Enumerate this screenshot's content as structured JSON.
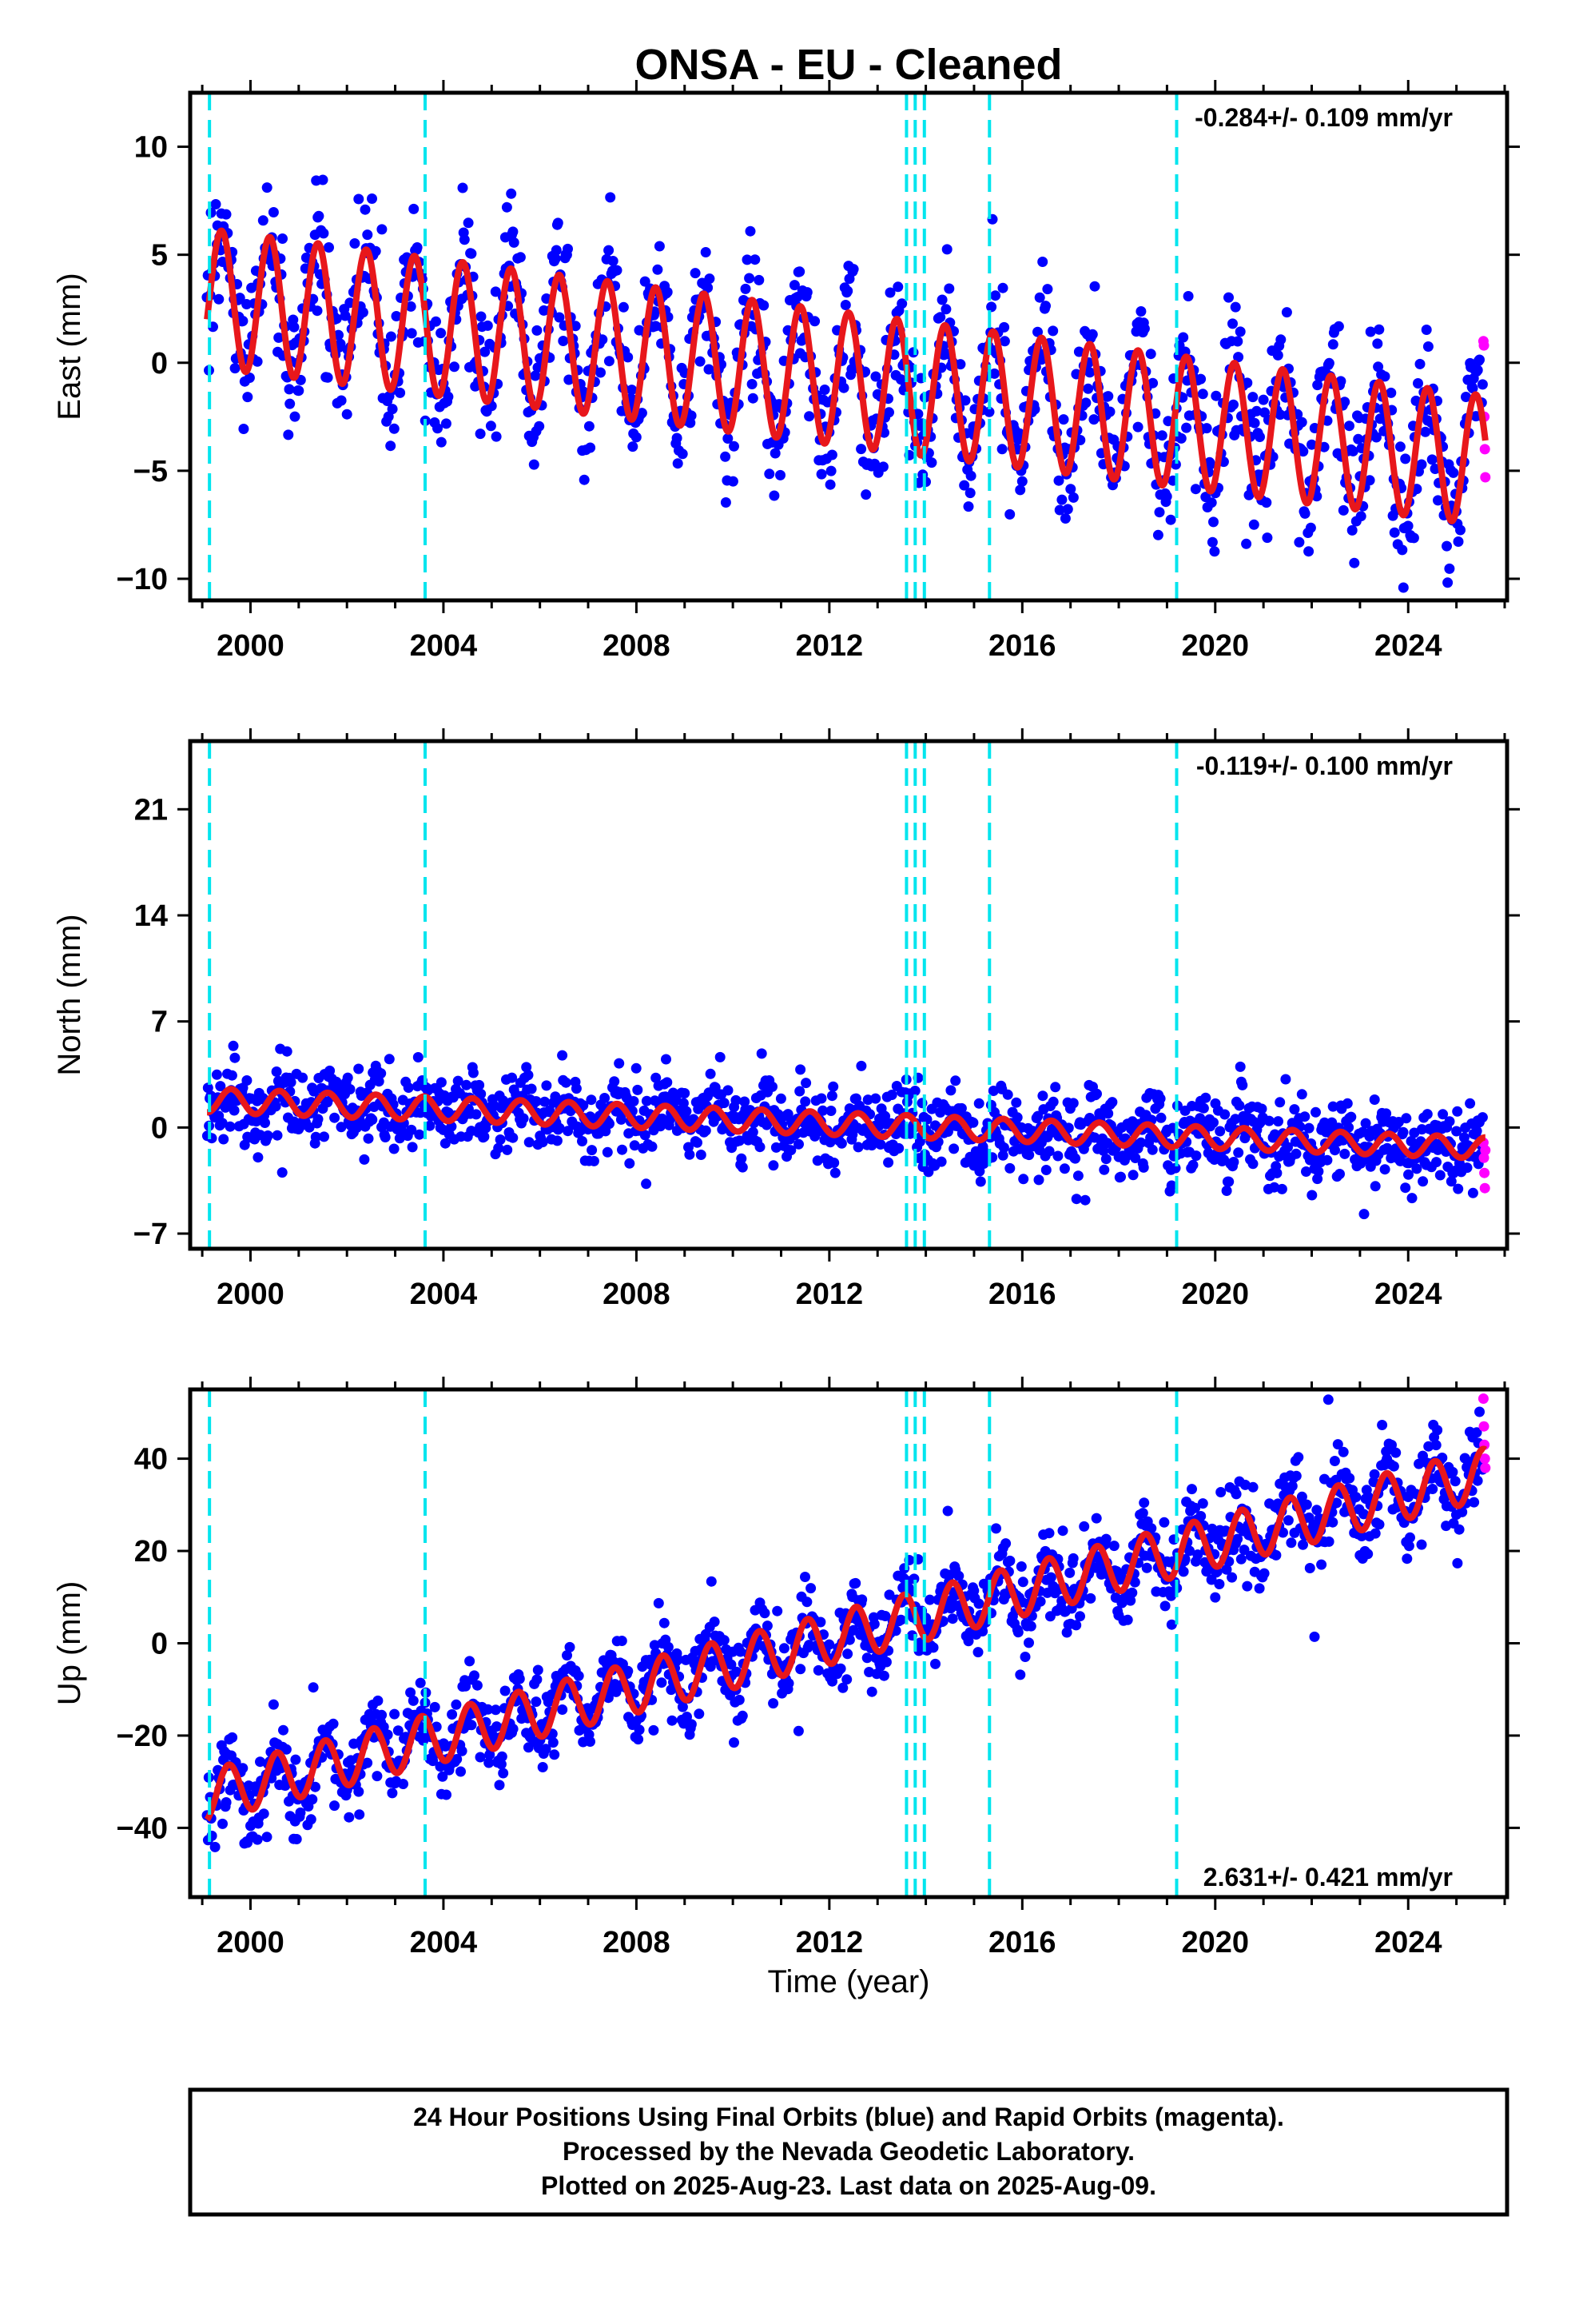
{
  "title": "ONSA  - EU - Cleaned",
  "xlabel": "Time (year)",
  "footer": [
    "24 Hour Positions Using Final Orbits (blue) and Rapid Orbits (magenta).",
    "Processed by the Nevada Geodetic Laboratory.",
    "Plotted on 2025-Aug-23. Last data on 2025-Aug-09."
  ],
  "colors": {
    "final": "#0000ff",
    "rapid": "#ff00ff",
    "model": "#e8171b",
    "breaks": "#00e5ee"
  },
  "chart_data": [
    {
      "type": "scatter",
      "component": "east",
      "ylabel": "East (mm)",
      "xlim": [
        1998.75,
        2026.05
      ],
      "ylim": [
        -11,
        12.5
      ],
      "yticks": [
        -10,
        -5,
        0,
        5,
        10
      ],
      "xticks": [
        2000,
        2004,
        2008,
        2012,
        2016,
        2020,
        2024
      ],
      "rate": "-0.284+/- 0.109 mm/yr",
      "model": {
        "start": 1999.1,
        "end": 2025.6,
        "offset_at_start": 3.0,
        "trend_mm_per_yr": -0.284,
        "annual_amplitude_start": 3.2,
        "annual_amplitude_end": 3.0,
        "peak_phase_year_fraction": 0.4
      },
      "scatter_sd": 1.6,
      "rapid_values": [
        1.0,
        0.8,
        -2.5,
        -4.0,
        -5.3
      ]
    },
    {
      "type": "scatter",
      "component": "north",
      "ylabel": "North (mm)",
      "xlim": [
        1998.75,
        2026.05
      ],
      "ylim": [
        -8,
        25.5
      ],
      "yticks": [
        -7,
        0,
        7,
        14,
        21
      ],
      "xticks": [
        2000,
        2004,
        2008,
        2012,
        2016,
        2020,
        2024
      ],
      "rate": "-0.119+/- 0.100 mm/yr",
      "model": {
        "start": 1999.1,
        "end": 2025.6,
        "offset_at_start": 1.8,
        "trend_mm_per_yr": -0.119,
        "annual_amplitude_start": 0.8,
        "annual_amplitude_end": 0.7,
        "peak_phase_year_fraction": 0.6
      },
      "scatter_sd": 1.3,
      "rapid_values": [
        -1.0,
        -2.0,
        -3.0,
        -4.0,
        -1.5
      ]
    },
    {
      "type": "scatter",
      "component": "up",
      "ylabel": "Up (mm)",
      "xlim": [
        1998.75,
        2026.05
      ],
      "ylim": [
        -55,
        55
      ],
      "yticks": [
        -40,
        -20,
        0,
        20,
        40
      ],
      "xticks": [
        2000,
        2004,
        2008,
        2012,
        2016,
        2020,
        2024
      ],
      "rate": "2.631+/- 0.421 mm/yr",
      "model": {
        "start": 1999.1,
        "end": 2025.6,
        "offset_at_start": -33.0,
        "trend_mm_per_yr": 2.631,
        "annual_amplitude_start": 5.5,
        "annual_amplitude_end": 5.5,
        "peak_phase_year_fraction": 0.55
      },
      "scatter_sd": 4.5,
      "rapid_values": [
        53,
        47,
        43,
        40,
        38
      ]
    }
  ],
  "breaks": [
    1999.15,
    2003.62,
    2013.6,
    2013.78,
    2013.97,
    2015.32,
    2019.2
  ]
}
